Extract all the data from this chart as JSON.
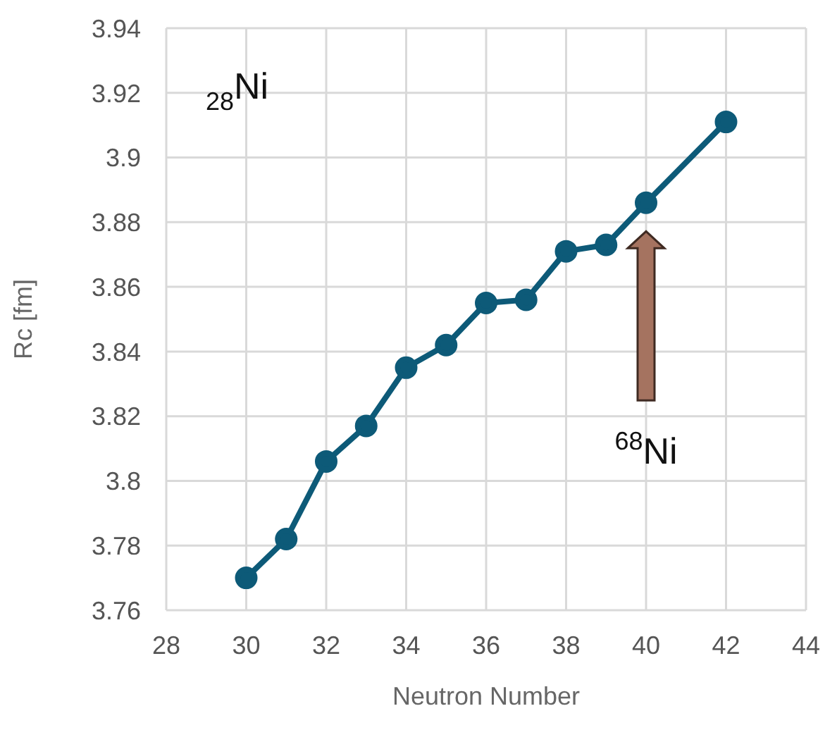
{
  "chart_data": {
    "type": "line",
    "xlabel": "Neutron Number",
    "ylabel": "Rc [fm]",
    "x": [
      30,
      31,
      32,
      33,
      34,
      35,
      36,
      37,
      38,
      39,
      40,
      42
    ],
    "series": [
      {
        "color": "#0d5a78",
        "values": [
          3.77,
          3.782,
          3.806,
          3.817,
          3.835,
          3.842,
          3.855,
          3.856,
          3.871,
          3.873,
          3.886,
          3.911
        ]
      }
    ],
    "xlim": [
      28,
      44
    ],
    "xticks": [
      28,
      30,
      32,
      34,
      36,
      38,
      40,
      42,
      44
    ],
    "ylim": [
      3.76,
      3.94
    ],
    "yticks": [
      3.76,
      3.78,
      3.8,
      3.82,
      3.84,
      3.86,
      3.88,
      3.9,
      3.92,
      3.94
    ],
    "grid": true,
    "marker": "circle",
    "line_style": "solid",
    "annotations": [
      "$_{28}$Ni",
      "$^{68}$Ni"
    ]
  }
}
